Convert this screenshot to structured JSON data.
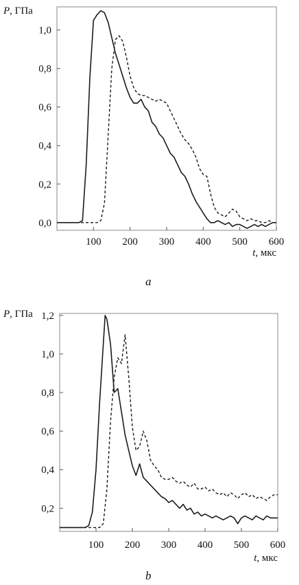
{
  "chart_data": [
    {
      "type": "line",
      "ylabel": "P, ГПа",
      "xlabel": "t, мкс",
      "caption": "a",
      "xlim": [
        0,
        600
      ],
      "ylim": [
        -0.04,
        1.12
      ],
      "xticks": [
        100,
        200,
        300,
        400,
        500,
        600
      ],
      "xtick_labels": [
        "100",
        "200",
        "300",
        "400",
        "500",
        "600"
      ],
      "yticks": [
        0.0,
        0.2,
        0.4,
        0.6,
        0.8,
        1.0
      ],
      "ytick_labels": [
        "0,0",
        "0,2",
        "0,4",
        "0,6",
        "0,8",
        "1,0"
      ],
      "grid": false,
      "series": [
        {
          "style": "solid",
          "x": [
            0,
            60,
            70,
            80,
            90,
            100,
            110,
            120,
            130,
            140,
            150,
            160,
            170,
            180,
            190,
            200,
            210,
            220,
            230,
            240,
            250,
            260,
            270,
            280,
            290,
            300,
            310,
            320,
            330,
            340,
            350,
            360,
            370,
            380,
            390,
            400,
            410,
            420,
            430,
            440,
            450,
            460,
            470,
            480,
            490,
            500,
            510,
            520,
            530,
            540,
            550,
            560,
            570,
            580,
            590,
            600
          ],
          "y": [
            0.0,
            0.0,
            0.01,
            0.3,
            0.75,
            1.05,
            1.08,
            1.1,
            1.09,
            1.04,
            0.96,
            0.88,
            0.82,
            0.76,
            0.7,
            0.65,
            0.62,
            0.62,
            0.64,
            0.6,
            0.58,
            0.52,
            0.5,
            0.46,
            0.44,
            0.4,
            0.36,
            0.34,
            0.3,
            0.26,
            0.24,
            0.2,
            0.15,
            0.11,
            0.08,
            0.05,
            0.02,
            0.0,
            0.0,
            0.01,
            0.0,
            -0.01,
            0.0,
            -0.02,
            -0.01,
            -0.01,
            -0.02,
            -0.03,
            -0.02,
            -0.01,
            -0.02,
            -0.01,
            -0.02,
            -0.01,
            0.0,
            0.0
          ]
        },
        {
          "style": "dashed",
          "x": [
            0,
            110,
            120,
            130,
            140,
            150,
            160,
            170,
            180,
            190,
            200,
            210,
            220,
            230,
            240,
            250,
            260,
            270,
            280,
            290,
            300,
            310,
            320,
            330,
            340,
            350,
            360,
            370,
            380,
            390,
            400,
            410,
            420,
            430,
            440,
            450,
            460,
            470,
            480,
            490,
            500,
            510,
            520,
            530,
            540,
            550,
            560,
            570,
            580,
            590,
            600
          ],
          "y": [
            0.0,
            0.0,
            0.01,
            0.1,
            0.45,
            0.8,
            0.95,
            0.97,
            0.94,
            0.86,
            0.76,
            0.7,
            0.67,
            0.66,
            0.66,
            0.65,
            0.64,
            0.63,
            0.64,
            0.63,
            0.62,
            0.58,
            0.54,
            0.5,
            0.46,
            0.43,
            0.41,
            0.38,
            0.34,
            0.28,
            0.25,
            0.24,
            0.15,
            0.08,
            0.05,
            0.04,
            0.03,
            0.05,
            0.07,
            0.06,
            0.03,
            0.02,
            0.01,
            0.02,
            0.01,
            0.01,
            0.0,
            0.0,
            0.01,
            0.0,
            0.0
          ]
        }
      ]
    },
    {
      "type": "line",
      "ylabel": "P, ГПа",
      "xlabel": "t, мкс",
      "caption": "b",
      "xlim": [
        0,
        600
      ],
      "ylim": [
        0.08,
        1.21
      ],
      "xticks": [
        100,
        200,
        300,
        400,
        500,
        600
      ],
      "xtick_labels": [
        "100",
        "200",
        "300",
        "400",
        "500",
        "600"
      ],
      "yticks": [
        0.2,
        0.4,
        0.6,
        0.8,
        1.0,
        1.2
      ],
      "ytick_labels": [
        "0,2",
        "0,4",
        "0,6",
        "0,8",
        "1,0",
        "1,2"
      ],
      "grid": false,
      "series": [
        {
          "style": "solid",
          "x": [
            0,
            65,
            70,
            80,
            90,
            100,
            110,
            120,
            125,
            130,
            140,
            150,
            160,
            170,
            180,
            190,
            200,
            210,
            220,
            230,
            240,
            250,
            260,
            270,
            280,
            290,
            300,
            310,
            320,
            330,
            340,
            350,
            360,
            370,
            380,
            390,
            400,
            410,
            420,
            430,
            440,
            450,
            460,
            470,
            480,
            490,
            500,
            510,
            520,
            530,
            540,
            550,
            560,
            570,
            580,
            590,
            600
          ],
          "y": [
            0.1,
            0.1,
            0.1,
            0.11,
            0.18,
            0.4,
            0.75,
            1.05,
            1.2,
            1.18,
            1.05,
            0.8,
            0.82,
            0.7,
            0.58,
            0.5,
            0.42,
            0.37,
            0.43,
            0.36,
            0.34,
            0.32,
            0.3,
            0.28,
            0.26,
            0.25,
            0.23,
            0.24,
            0.22,
            0.2,
            0.22,
            0.19,
            0.2,
            0.17,
            0.18,
            0.16,
            0.17,
            0.16,
            0.15,
            0.16,
            0.15,
            0.14,
            0.15,
            0.16,
            0.15,
            0.12,
            0.15,
            0.16,
            0.15,
            0.14,
            0.16,
            0.15,
            0.14,
            0.16,
            0.15,
            0.15,
            0.15
          ]
        },
        {
          "style": "dashed",
          "x": [
            0,
            100,
            110,
            120,
            130,
            140,
            150,
            160,
            170,
            180,
            190,
            200,
            210,
            220,
            230,
            240,
            250,
            260,
            270,
            280,
            290,
            300,
            310,
            320,
            330,
            340,
            350,
            360,
            370,
            380,
            390,
            400,
            410,
            420,
            430,
            440,
            450,
            460,
            470,
            480,
            490,
            500,
            510,
            520,
            530,
            540,
            550,
            560,
            570,
            580,
            590,
            600
          ],
          "y": [
            0.1,
            0.1,
            0.1,
            0.12,
            0.3,
            0.65,
            0.88,
            0.98,
            0.95,
            1.1,
            0.88,
            0.62,
            0.5,
            0.52,
            0.6,
            0.55,
            0.45,
            0.42,
            0.4,
            0.36,
            0.35,
            0.35,
            0.36,
            0.34,
            0.33,
            0.34,
            0.32,
            0.31,
            0.33,
            0.3,
            0.3,
            0.31,
            0.29,
            0.3,
            0.28,
            0.27,
            0.28,
            0.26,
            0.28,
            0.27,
            0.25,
            0.27,
            0.28,
            0.26,
            0.27,
            0.25,
            0.26,
            0.25,
            0.24,
            0.26,
            0.27,
            0.27
          ]
        }
      ]
    }
  ]
}
